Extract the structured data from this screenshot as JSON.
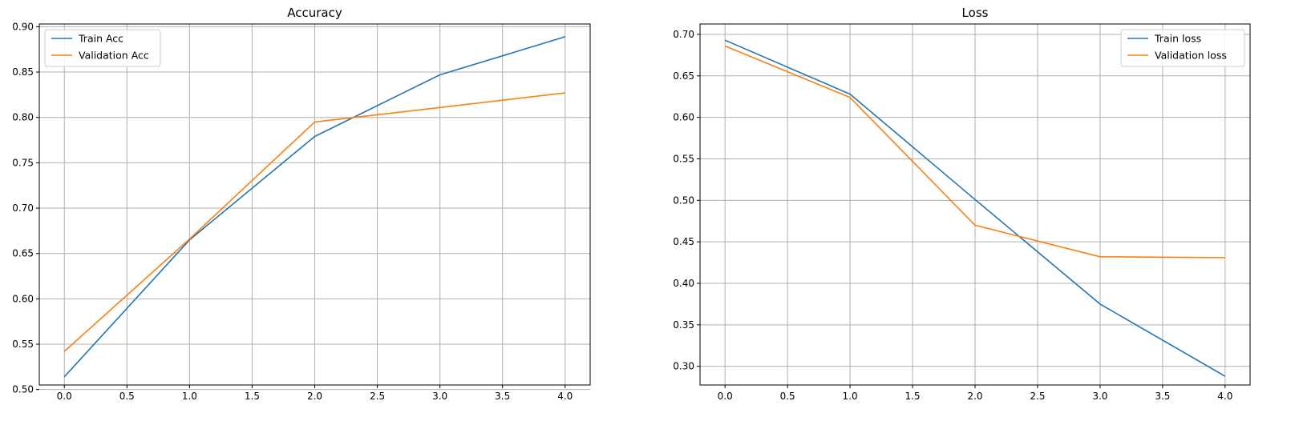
{
  "chart_data": [
    {
      "type": "line",
      "title": "Accuracy",
      "xlabel": "",
      "ylabel": "",
      "x": [
        0,
        1,
        2,
        3,
        4
      ],
      "xlim": [
        -0.2,
        4.2
      ],
      "ylim": [
        0.505,
        0.903
      ],
      "xticks": [
        "0.0",
        "0.5",
        "1.0",
        "1.5",
        "2.0",
        "2.5",
        "3.0",
        "3.5",
        "4.0"
      ],
      "yticks": [
        "0.50",
        "0.55",
        "0.60",
        "0.65",
        "0.70",
        "0.75",
        "0.80",
        "0.85",
        "0.90"
      ],
      "grid": true,
      "legend_position": "upper-left",
      "series": [
        {
          "name": "Train Acc",
          "color": "#1f77b4",
          "values": [
            0.514,
            0.665,
            0.779,
            0.847,
            0.889
          ]
        },
        {
          "name": "Validation Acc",
          "color": "#ff7f0e",
          "values": [
            0.542,
            0.666,
            0.795,
            0.811,
            0.827
          ]
        }
      ]
    },
    {
      "type": "line",
      "title": "Loss",
      "xlabel": "",
      "ylabel": "",
      "x": [
        0,
        1,
        2,
        3,
        4
      ],
      "xlim": [
        -0.2,
        4.2
      ],
      "ylim": [
        0.2775,
        0.7125
      ],
      "xticks": [
        "0.0",
        "0.5",
        "1.0",
        "1.5",
        "2.0",
        "2.5",
        "3.0",
        "3.5",
        "4.0"
      ],
      "yticks": [
        "0.30",
        "0.35",
        "0.40",
        "0.45",
        "0.50",
        "0.55",
        "0.60",
        "0.65",
        "0.70"
      ],
      "grid": true,
      "legend_position": "upper-right",
      "series": [
        {
          "name": "Train loss",
          "color": "#1f77b4",
          "values": [
            0.693,
            0.628,
            0.501,
            0.375,
            0.288
          ]
        },
        {
          "name": "Validation loss",
          "color": "#ff7f0e",
          "values": [
            0.686,
            0.624,
            0.47,
            0.432,
            0.431
          ]
        }
      ]
    }
  ]
}
